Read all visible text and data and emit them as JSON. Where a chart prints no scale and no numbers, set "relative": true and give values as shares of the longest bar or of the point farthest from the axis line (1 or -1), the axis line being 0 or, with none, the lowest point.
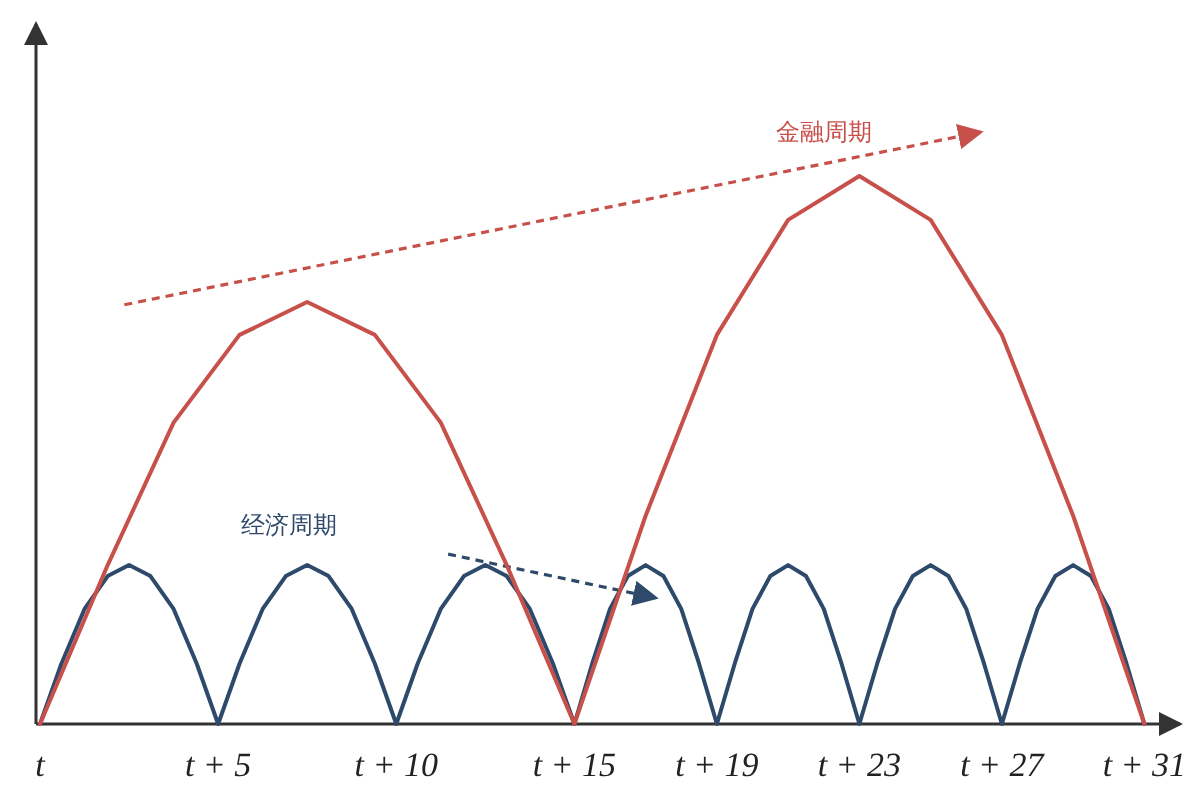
{
  "chart_data": {
    "type": "line",
    "relative": true,
    "grid": false,
    "marker": "none",
    "xlim": [
      0,
      32
    ],
    "xticks": [
      {
        "value": 0,
        "label": "t"
      },
      {
        "value": 5,
        "label": "t + 5"
      },
      {
        "value": 10,
        "label": "t + 10"
      },
      {
        "value": 15,
        "label": "t + 15"
      },
      {
        "value": 19,
        "label": "t + 19"
      },
      {
        "value": 23,
        "label": "t + 23"
      },
      {
        "value": 27,
        "label": "t + 27"
      },
      {
        "value": 31,
        "label": "t + 31"
      }
    ],
    "series": [
      {
        "name": "经济周期",
        "color": "#2e4a6b",
        "x": [
          0,
          0.6,
          1.25,
          1.9,
          2.5,
          3.1,
          3.75,
          4.4,
          5,
          5.6,
          6.25,
          6.9,
          7.5,
          8.1,
          8.75,
          9.4,
          10,
          10.6,
          11.25,
          11.9,
          12.5,
          13.1,
          13.75,
          14.4,
          15,
          15.5,
          16,
          16.5,
          17,
          17.5,
          18,
          18.5,
          19,
          19.5,
          20,
          20.5,
          21,
          21.5,
          22,
          22.5,
          23,
          23.5,
          24,
          24.5,
          25,
          25.5,
          26,
          26.5,
          27,
          27.5,
          28,
          28.5,
          29,
          29.5,
          30,
          30.5,
          31
        ],
        "values": [
          0,
          0.11,
          0.21,
          0.27,
          0.29,
          0.27,
          0.21,
          0.11,
          0,
          0.11,
          0.21,
          0.27,
          0.29,
          0.27,
          0.21,
          0.11,
          0,
          0.11,
          0.21,
          0.27,
          0.29,
          0.27,
          0.21,
          0.11,
          0,
          0.11,
          0.21,
          0.27,
          0.29,
          0.27,
          0.21,
          0.11,
          0,
          0.11,
          0.21,
          0.27,
          0.29,
          0.27,
          0.21,
          0.11,
          0,
          0.11,
          0.21,
          0.27,
          0.29,
          0.27,
          0.21,
          0.11,
          0,
          0.11,
          0.21,
          0.27,
          0.29,
          0.27,
          0.21,
          0.11,
          0
        ]
      },
      {
        "name": "金融周期",
        "color": "#c8504a",
        "x": [
          0,
          1.9,
          3.75,
          5.6,
          7.5,
          9.4,
          11.25,
          13.1,
          15,
          17,
          19,
          21,
          23,
          25,
          27,
          29,
          31
        ],
        "values": [
          0,
          0.29,
          0.55,
          0.71,
          0.77,
          0.71,
          0.55,
          0.29,
          0,
          0.38,
          0.71,
          0.92,
          1,
          0.92,
          0.71,
          0.38,
          0
        ]
      }
    ]
  }
}
